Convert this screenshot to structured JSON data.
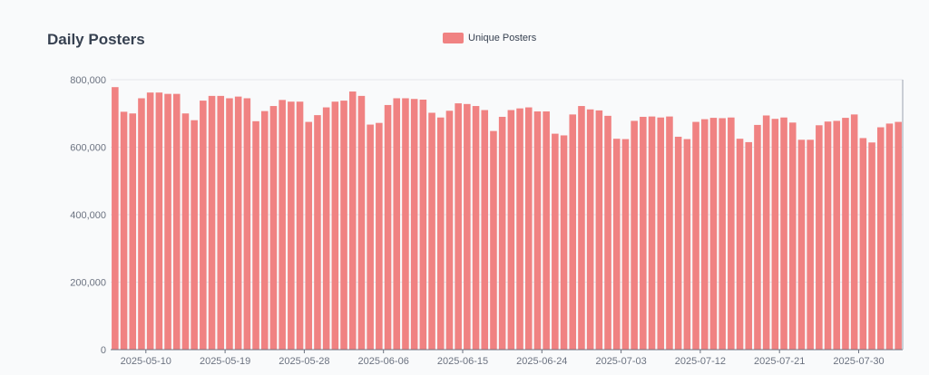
{
  "chart_data": {
    "type": "bar",
    "title": "Daily Posters",
    "xlabel": "",
    "ylabel": "",
    "legend_position": "top-center",
    "grid": true,
    "color": "#f08282",
    "series": [
      {
        "name": "Unique Posters",
        "values": [
          778000,
          705000,
          700000,
          745000,
          762000,
          762000,
          758000,
          758000,
          700000,
          680000,
          738000,
          752000,
          752000,
          745000,
          750000,
          745000,
          677000,
          707000,
          722000,
          740000,
          735000,
          735000,
          675000,
          695000,
          718000,
          735000,
          738000,
          765000,
          752000,
          667000,
          672000,
          725000,
          745000,
          745000,
          743000,
          741000,
          702000,
          688000,
          708000,
          730000,
          728000,
          722000,
          710000,
          648000,
          690000,
          710000,
          715000,
          718000,
          706000,
          706000,
          640000,
          635000,
          697000,
          722000,
          712000,
          709000,
          693000,
          625000,
          624000,
          678000,
          690000,
          691000,
          688000,
          691000,
          631000,
          624000,
          675000,
          683000,
          687000,
          686000,
          688000,
          625000,
          615000,
          666000,
          694000,
          684000,
          688000,
          673000,
          622000,
          622000,
          665000,
          676000,
          678000,
          687000,
          697000,
          627000,
          614000,
          659000,
          670000,
          675000
        ]
      }
    ],
    "x_tick_labels": [
      "2025-05-10",
      "2025-05-19",
      "2025-05-28",
      "2025-06-06",
      "2025-06-15",
      "2025-06-24",
      "2025-07-03",
      "2025-07-12",
      "2025-07-21",
      "2025-07-30"
    ],
    "y_tick_labels": [
      "800,000",
      "600,000",
      "400,000",
      "200,000",
      "0"
    ],
    "ylim": [
      0,
      800000
    ],
    "xlim": [
      "2025-05-06",
      "2025-08-03"
    ]
  }
}
